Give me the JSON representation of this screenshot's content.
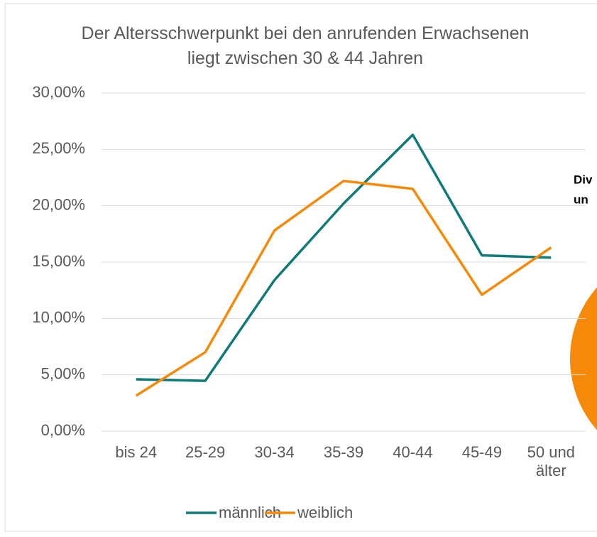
{
  "chart_data": {
    "type": "line",
    "title": "Der Altersschwerpunkt bei den anrufenden Erwachsenen liegt zwischen 30 & 44 Jahren",
    "categories": [
      "bis 24",
      "25-29",
      "30-34",
      "35-39",
      "40-44",
      "45-49",
      "50 und älter"
    ],
    "series": [
      {
        "name": "männlich",
        "color": "#0f7a78",
        "values": [
          4.6,
          4.47,
          13.4,
          20.2,
          26.3,
          15.6,
          15.4
        ]
      },
      {
        "name": "weiblich",
        "color": "#f58a0a",
        "values": [
          3.15,
          7.0,
          17.8,
          22.2,
          21.5,
          12.1,
          16.3
        ]
      }
    ],
    "ylim": [
      0,
      30
    ],
    "yticks": [
      {
        "value": 0,
        "label": "0,00%"
      },
      {
        "value": 5,
        "label": "5,00%"
      },
      {
        "value": 10,
        "label": "10,00%"
      },
      {
        "value": 15,
        "label": "15,00%"
      },
      {
        "value": 20,
        "label": "20,00%"
      },
      {
        "value": 25,
        "label": "25,00%"
      },
      {
        "value": 30,
        "label": "30,00%"
      }
    ],
    "grid": true,
    "legend": "bottom",
    "annotations": [
      "Div",
      "un"
    ]
  }
}
